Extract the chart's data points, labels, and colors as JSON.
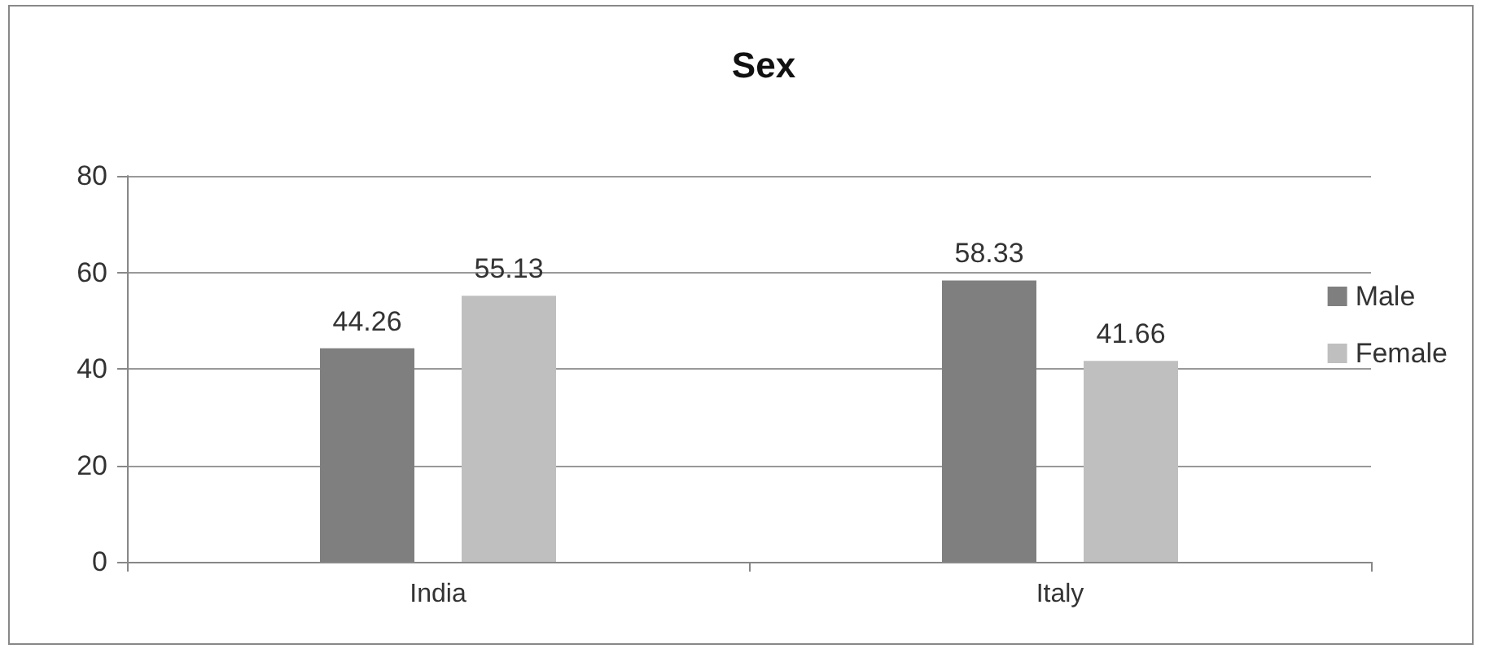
{
  "chart_data": {
    "type": "bar",
    "title": "Sex",
    "categories": [
      "India",
      "Italy"
    ],
    "series": [
      {
        "name": "Male",
        "color": "#7f7f7f",
        "values": [
          44.26,
          58.33
        ]
      },
      {
        "name": "Female",
        "color": "#bfbfbf",
        "values": [
          55.13,
          41.66
        ]
      }
    ],
    "ylim": [
      0,
      80
    ],
    "yticks": [
      0,
      20,
      40,
      60,
      80
    ],
    "grid": "y",
    "legend": "right",
    "data_labels": true
  }
}
